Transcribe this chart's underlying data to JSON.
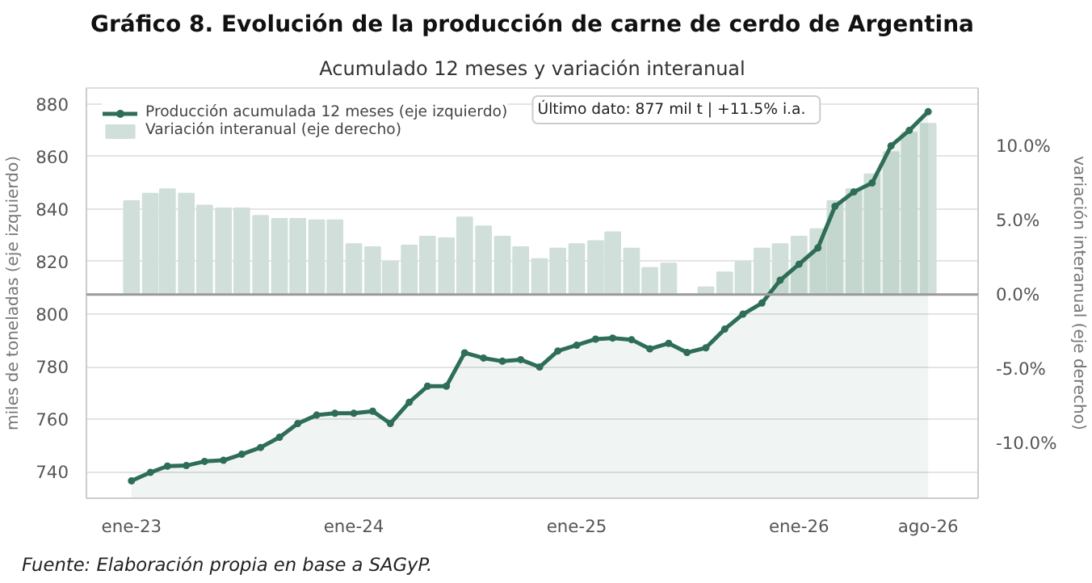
{
  "chart_data": {
    "type": "bar",
    "title": "Gráfico 8. Evolución de la producción de carne de cerdo de Argentina",
    "subtitle": "Acumulado 12 meses y variación interanual",
    "ylabel": "miles de toneladas (eje izquierdo)",
    "y2label": "variación interanual (eje derecho)",
    "x": [
      "2023-01",
      "2023-02",
      "2023-03",
      "2023-04",
      "2023-05",
      "2023-06",
      "2023-07",
      "2023-08",
      "2023-09",
      "2023-10",
      "2023-11",
      "2023-12",
      "2024-01",
      "2024-02",
      "2024-03",
      "2024-04",
      "2024-05",
      "2024-06",
      "2024-07",
      "2024-08",
      "2024-09",
      "2024-10",
      "2024-11",
      "2024-12",
      "2025-01",
      "2025-02",
      "2025-03",
      "2025-04",
      "2025-05",
      "2025-06",
      "2025-07",
      "2025-08",
      "2025-09",
      "2025-10",
      "2025-11",
      "2025-12",
      "2026-01",
      "2026-02",
      "2026-03",
      "2026-04",
      "2026-05",
      "2026-06",
      "2026-07",
      "2026-08"
    ],
    "series": [
      {
        "name": "Producción acumulada 12 meses (eje izquierdo)",
        "type": "area",
        "color": "#2e6e57",
        "values": [
          736.6,
          739.8,
          742.2,
          742.4,
          744.0,
          744.4,
          746.7,
          749.3,
          753.2,
          758.4,
          761.6,
          762.3,
          762.3,
          763.1,
          758.4,
          766.5,
          772.6,
          772.6,
          785.3,
          783.3,
          782.1,
          782.7,
          779.9,
          786.0,
          788.2,
          790.5,
          790.9,
          790.3,
          786.8,
          788.9,
          785.4,
          787.2,
          794.3,
          800.0,
          804.2,
          812.9,
          819.0,
          825.2,
          841.0,
          846.5,
          849.9,
          864.0,
          869.9,
          877.0
        ]
      },
      {
        "name": "Variación interanual (eje derecho)",
        "axis": "y2",
        "color": "#d0dfd9",
        "values": [
          6.3,
          6.8,
          7.1,
          6.8,
          6.0,
          5.8,
          5.8,
          5.3,
          5.1,
          5.1,
          5.0,
          5.0,
          3.4,
          3.2,
          2.2,
          3.3,
          3.9,
          3.8,
          5.2,
          4.6,
          3.9,
          3.2,
          2.4,
          3.1,
          3.4,
          3.6,
          4.2,
          3.1,
          1.8,
          2.1,
          0.0,
          0.5,
          1.5,
          2.2,
          3.1,
          3.4,
          3.9,
          4.4,
          6.3,
          7.1,
          8.1,
          9.6,
          10.9,
          11.5
        ]
      }
    ],
    "xlim": [
      "2022-10-19",
      "2026-10-22"
    ],
    "xticks": [
      {
        "value": "2023-01",
        "label": "ene-23"
      },
      {
        "value": "2024-01",
        "label": "ene-24"
      },
      {
        "value": "2025-01",
        "label": "ene-25"
      },
      {
        "value": "2026-01",
        "label": "ene-26"
      },
      {
        "value": "2026-08",
        "label": "ago-26"
      }
    ],
    "ylim": [
      730,
      886
    ],
    "yticks": [
      740,
      760,
      780,
      800,
      820,
      840,
      860,
      880
    ],
    "y2lim": [
      -13.7,
      13.9
    ],
    "y2ticks": [
      {
        "value": -10,
        "label": "-10.0%"
      },
      {
        "value": -5,
        "label": "-5.0%"
      },
      {
        "value": 0,
        "label": "0.0%"
      },
      {
        "value": 5,
        "label": "5.0%"
      },
      {
        "value": 10,
        "label": "10.0%"
      }
    ],
    "ref_lines": [
      {
        "axis": "y2",
        "value": 0,
        "color": "#9a9a9a"
      }
    ],
    "grid": "y",
    "legend": "top left",
    "marker": "circle",
    "annotations": [
      "Último dato: 877 mil t  |  +11.5% i.a.",
      "Fuente: Elaboración propia en base a SAGyP."
    ]
  }
}
